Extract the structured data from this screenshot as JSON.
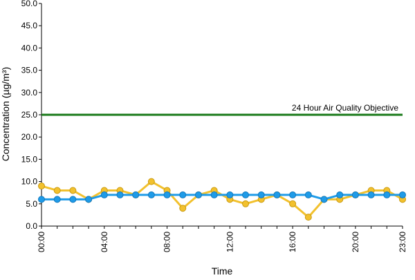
{
  "chart_data": {
    "type": "line",
    "title": "",
    "xlabel": "Time",
    "ylabel": "Concentration (µg/m³)",
    "ylim": [
      0,
      50
    ],
    "y_ticks": [
      "0.0",
      "5.0",
      "10.0",
      "15.0",
      "20.0",
      "25.0",
      "30.0",
      "35.0",
      "40.0",
      "45.0",
      "50.0"
    ],
    "x_hours": [
      0,
      1,
      2,
      3,
      4,
      5,
      6,
      7,
      8,
      9,
      10,
      11,
      12,
      13,
      14,
      15,
      16,
      17,
      18,
      19,
      20,
      21,
      22,
      23
    ],
    "x_tick_labels": [
      {
        "hour": 0,
        "label": "00:00"
      },
      {
        "hour": 4,
        "label": "04:00"
      },
      {
        "hour": 8,
        "label": "08:00"
      },
      {
        "hour": 12,
        "label": "12:00"
      },
      {
        "hour": 16,
        "label": "16:00"
      },
      {
        "hour": 20,
        "label": "20:00"
      },
      {
        "hour": 23,
        "label": "23:00"
      }
    ],
    "grid": false,
    "series": [
      {
        "color": "#f2c12e",
        "values": [
          9,
          8,
          8,
          6,
          8,
          8,
          7,
          10,
          8,
          4,
          7,
          8,
          6,
          5,
          6,
          7,
          5,
          2,
          6,
          6,
          7,
          8,
          8,
          6
        ]
      },
      {
        "color": "#1e9be8",
        "values": [
          6,
          6,
          6,
          6,
          7,
          7,
          7,
          7,
          7,
          7,
          7,
          7,
          7,
          7,
          7,
          7,
          7,
          7,
          6,
          7,
          7,
          7,
          7,
          7
        ]
      }
    ],
    "reference_line": {
      "value": 25,
      "label": "24 Hour Air Quality Objective",
      "color": "#1a7a1a"
    }
  }
}
